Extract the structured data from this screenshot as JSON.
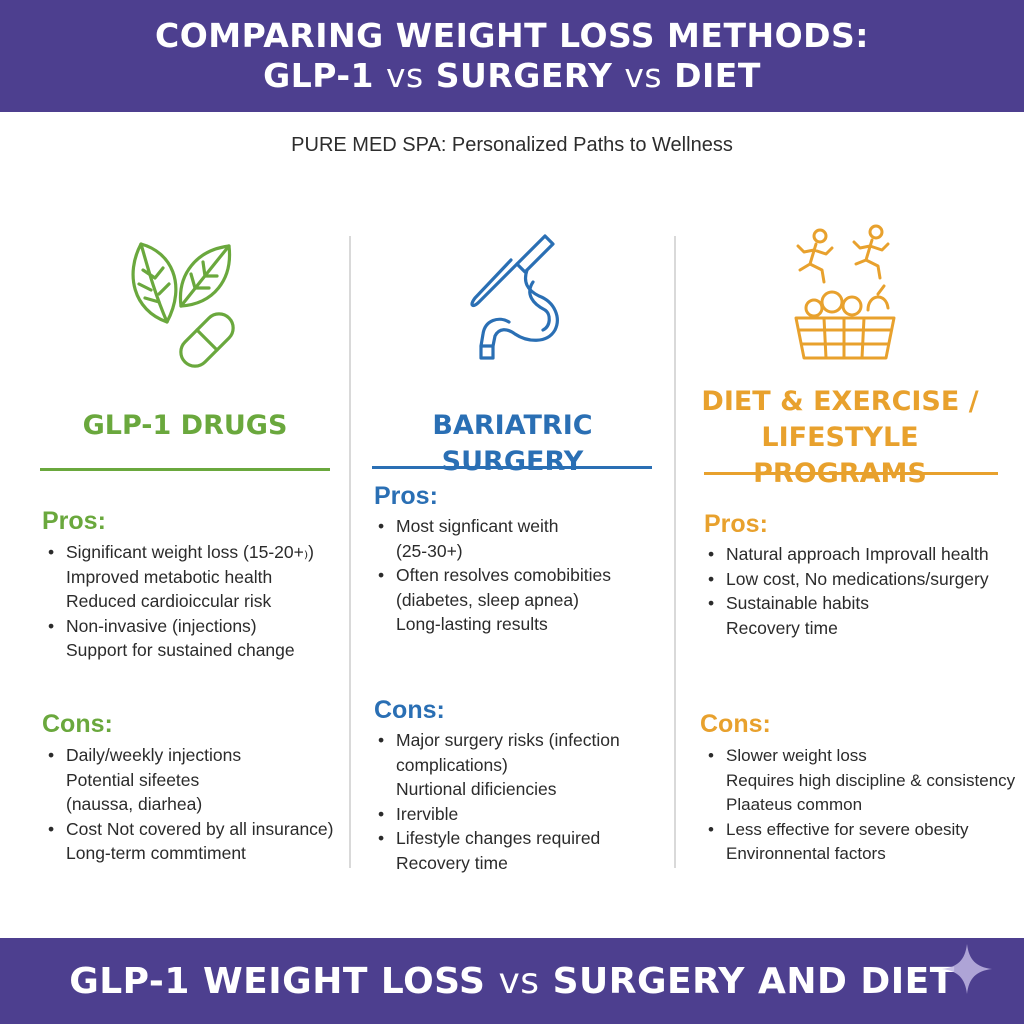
{
  "header": {
    "line1": "COMPARING WEIGHT LOSS METHODS:",
    "line2_a": "GLP-1",
    "line2_vs1": "vs",
    "line2_b": "SURGERY",
    "line2_vs2": "vs",
    "line2_c": "DIET"
  },
  "subtitle": "PURE MED SPA: Personalized Paths to Wellness",
  "colors": {
    "banner": "#4d3f8f",
    "green": "#6aa83d",
    "blue": "#2a6fb4",
    "orange": "#e8a12d"
  },
  "columns": [
    {
      "icon": "leaves-capsule-icon",
      "heading_lines": [
        "GLP-1 DRUGS"
      ],
      "pros_label": "Pros:",
      "pros": [
        [
          "Significant weight loss (15-20+₎)",
          "Improved metabotic health",
          "Reduced cardioiccular risk"
        ],
        [
          "Non-invasive (injections)",
          "Support for sustained change"
        ]
      ],
      "cons_label": "Cons:",
      "cons": [
        [
          "Daily/weekly injections",
          "Potential sifeetes",
          "(naussa, diarhea)"
        ],
        [
          "Cost Not covered by all insurance)",
          "Long-term commtiment"
        ]
      ]
    },
    {
      "icon": "scalpel-stomach-icon",
      "heading_lines": [
        "BARIATRIC SURGERY"
      ],
      "pros_label": "Pros:",
      "pros": [
        [
          "Most signficant weith",
          "(25-30+)"
        ],
        [
          "Often resolves comobibities",
          "(diabetes, sleep apnea)",
          "Long-lasting results"
        ]
      ],
      "cons_label": "Cons:",
      "cons": [
        [
          "Major surgery risks (infection",
          "complications)",
          "Nurtional dificiencies"
        ],
        [
          "Irervible"
        ],
        [
          "Lifestyle changes required",
          "Recovery time"
        ]
      ]
    },
    {
      "icon": "runners-food-basket-icon",
      "heading_lines": [
        "DIET & EXERCISE /",
        "LIFESTYLE PROGRAMS"
      ],
      "pros_label": "Pros:",
      "pros": [
        [
          "Natural approach Improvall health"
        ],
        [
          "Low cost, No medications/surgery"
        ],
        [
          "Sustainable habits",
          "Recovery time"
        ]
      ],
      "cons_label": "Cons:",
      "cons": [
        [
          "Slower weight loss",
          "Requires high discipline & consistency",
          "Plaateus common"
        ],
        [
          "Less effective for severe obesity",
          "Environnental factors"
        ]
      ]
    }
  ],
  "footer": {
    "a": "GLP-1 WEIGHT LOSS",
    "vs": "vs",
    "b": "SURGERY AND DIET",
    "icon": "sparkle-icon"
  }
}
